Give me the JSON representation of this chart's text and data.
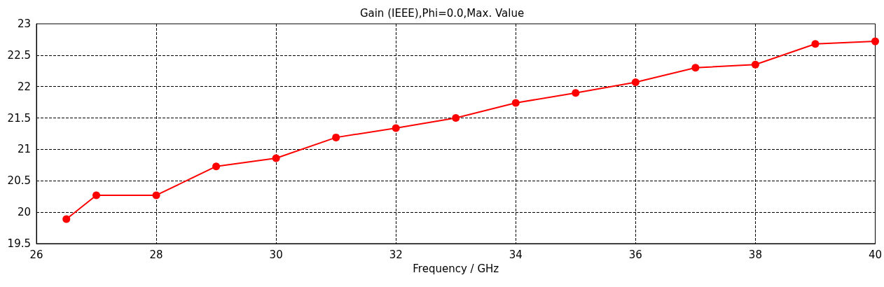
{
  "chart_data": {
    "type": "line",
    "title": "Gain (IEEE),Phi=0.0,Max. Value",
    "xlabel": "Frequency / GHz",
    "x": [
      26.5,
      27,
      28,
      29,
      30,
      31,
      32,
      33,
      34,
      35,
      36,
      37,
      38,
      39,
      40
    ],
    "series": [
      {
        "color": "#ff0000",
        "values": [
          19.89,
          20.27,
          20.27,
          20.73,
          20.86,
          21.19,
          21.34,
          21.5,
          21.74,
          21.9,
          22.07,
          22.3,
          22.35,
          22.68,
          22.72
        ]
      }
    ],
    "xlim": [
      26,
      40
    ],
    "xticks": [
      26,
      28,
      30,
      32,
      34,
      36,
      38,
      40
    ],
    "ylim": [
      19.5,
      23
    ],
    "yticks": [
      19.5,
      20,
      20.5,
      21,
      21.5,
      22,
      22.5,
      23
    ],
    "grid": true,
    "marker": "circle",
    "line_style": "solid"
  }
}
